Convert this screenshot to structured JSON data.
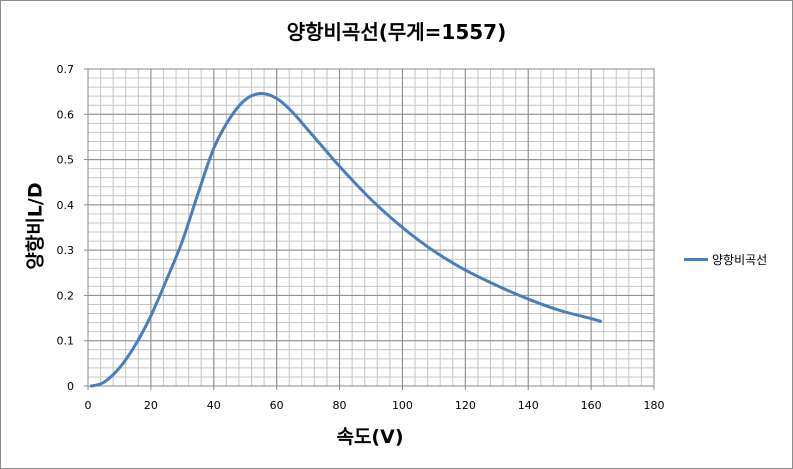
{
  "chart_data": {
    "type": "line",
    "title": "양항비곡선(무게=1557)",
    "xlabel": "속도(V)",
    "ylabel": "양항비L/D",
    "xlim": [
      0,
      180
    ],
    "ylim": [
      0,
      0.7
    ],
    "x_ticks": [
      0,
      20,
      40,
      60,
      80,
      100,
      120,
      140,
      160,
      180
    ],
    "y_ticks": [
      0,
      0.1,
      0.2,
      0.3,
      0.4,
      0.5,
      0.6,
      0.7
    ],
    "x_tick_labels": [
      "0",
      "20",
      "40",
      "60",
      "80",
      "100",
      "120",
      "140",
      "160",
      "180"
    ],
    "y_tick_labels": [
      "0",
      "0.1",
      "0.2",
      "0.3",
      "0.4",
      "0.5",
      "0.6",
      "0.7"
    ],
    "grid": true,
    "legend_position": "right",
    "series": [
      {
        "name": "양항비곡선",
        "color": "#4a7ebb",
        "x": [
          1,
          5,
          10,
          15,
          20,
          25,
          30,
          35,
          40,
          45,
          50,
          55,
          60,
          65,
          70,
          75,
          80,
          90,
          100,
          110,
          120,
          130,
          140,
          150,
          160,
          163
        ],
        "y": [
          0.0,
          0.008,
          0.04,
          0.09,
          0.155,
          0.235,
          0.32,
          0.425,
          0.525,
          0.59,
          0.632,
          0.646,
          0.635,
          0.605,
          0.565,
          0.525,
          0.485,
          0.412,
          0.35,
          0.298,
          0.256,
          0.222,
          0.192,
          0.167,
          0.149,
          0.143
        ]
      }
    ]
  }
}
